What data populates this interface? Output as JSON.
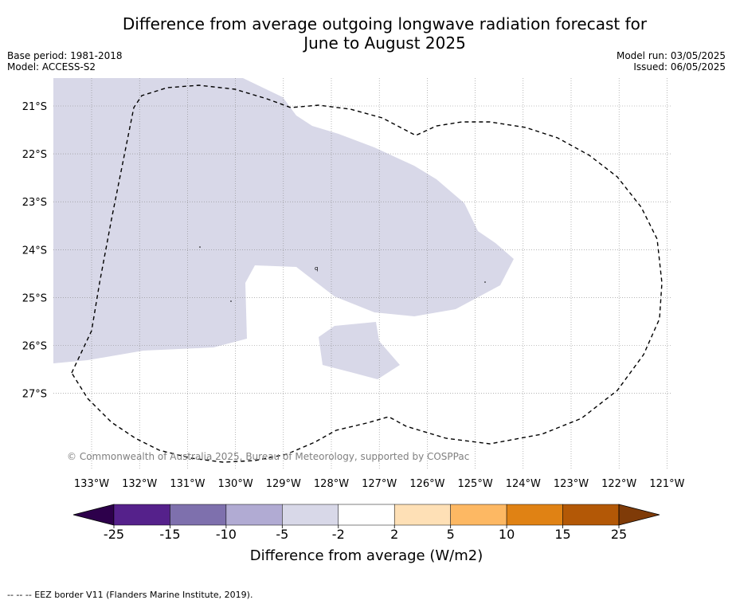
{
  "title": {
    "line1": "Difference from average outgoing longwave radiation forecast for",
    "line2": "June to August 2025"
  },
  "meta": {
    "base_period": "Base period: 1981-2018",
    "model": "Model: ACCESS-S2",
    "model_run": "Model run: 03/05/2025",
    "issued": "Issued: 06/05/2025"
  },
  "map": {
    "copyright": "© Commonwealth of Australia 2025, Bureau of Meteorology, supported by COSPPac",
    "lon_labels": [
      "133°W",
      "132°W",
      "131°W",
      "130°W",
      "129°W",
      "128°W",
      "127°W",
      "126°W",
      "125°W",
      "124°W",
      "123°W",
      "122°W",
      "121°W"
    ],
    "lat_labels": [
      "21°S",
      "22°S",
      "23°S",
      "24°S",
      "25°S",
      "26°S",
      "27°S"
    ],
    "shaded_category": "-5 to -2",
    "shade_color": "#d8d8e8",
    "eez_line_style": "dashed black"
  },
  "colorbar": {
    "label": "Difference from average (W/m2)",
    "ticks": [
      "-25",
      "-15",
      "-10",
      "-5",
      "-2",
      "2",
      "5",
      "10",
      "15",
      "25"
    ],
    "colors": [
      "#55218b",
      "#7e70ad",
      "#b1abd3",
      "#d8d8e8",
      "#ffffff",
      "#fee0b6",
      "#fdb863",
      "#e08214",
      "#b35806"
    ],
    "under_color": "#2d004b",
    "over_color": "#7f3b08"
  },
  "footer": "--  --  -- EEZ border V11 (Flanders Marine Institute, 2019)."
}
